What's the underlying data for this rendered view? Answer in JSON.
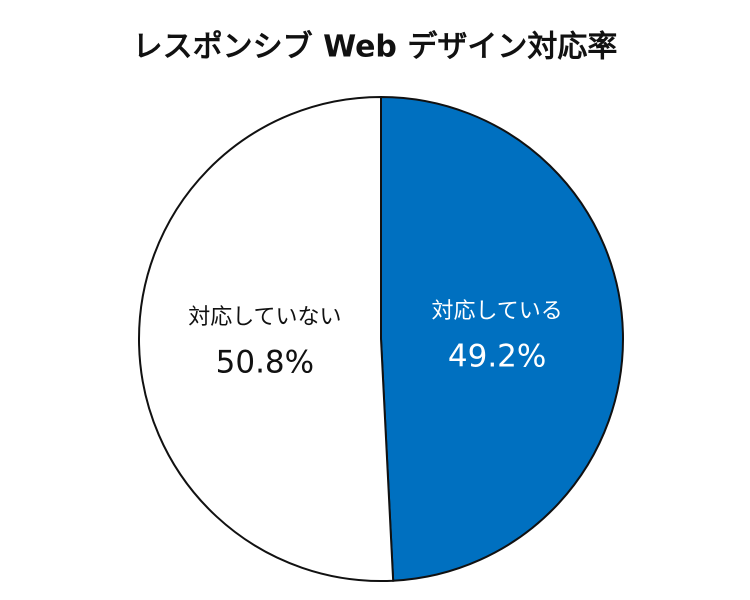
{
  "chart_data": {
    "type": "pie",
    "title": "レスポンシブ Web デザイン対応率",
    "categories": [
      "対応している",
      "対応していない"
    ],
    "values": [
      49.2,
      50.8
    ],
    "value_labels": [
      "49.2%",
      "50.8%"
    ],
    "colors": [
      "#0070c0",
      "#ffffff"
    ]
  }
}
